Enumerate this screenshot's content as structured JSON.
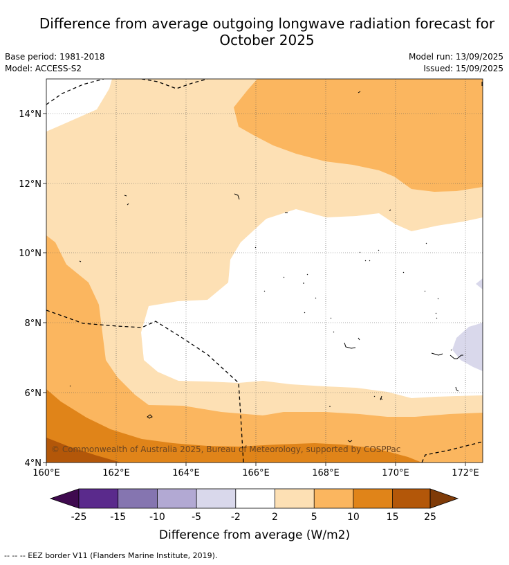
{
  "title": "Difference from average outgoing longwave radiation forecast for October 2025",
  "title_line1": "Difference from average outgoing longwave radiation forecast for",
  "title_line2": "October 2025",
  "base_period": "Base period: 1981-2018",
  "model": "Model: ACCESS-S2",
  "model_run": "Model run: 13/09/2025",
  "issued": "Issued: 15/09/2025",
  "copyright": "© Commonwealth of Australia 2025, Bureau of Meteorology, supported by COSPPac",
  "footer_note": "--  --  -- EEZ border V11 (Flanders Marine Institute, 2019).",
  "colorbar_label": "Difference from average (W/m2)",
  "lat_ticks": [
    "14°N",
    "12°N",
    "10°N",
    "8°N",
    "6°N",
    "4°N"
  ],
  "lon_ticks": [
    "160°E",
    "162°E",
    "164°E",
    "166°E",
    "168°E",
    "170°E",
    "172°E"
  ],
  "colorbar_ticks": [
    "-25",
    "-15",
    "-10",
    "-5",
    "-2",
    "2",
    "5",
    "10",
    "15",
    "25"
  ],
  "colors": {
    "c_lt_25": "#3f0a4f",
    "c_m25_m15": "#5a2a8c",
    "c_m15_m10": "#8575b0",
    "c_m10_m5": "#b2a9d3",
    "c_m5_m2": "#d9d8eb",
    "c_m2_2": "#ffffff",
    "c_2_5": "#fde0b4",
    "c_5_10": "#fbb65f",
    "c_10_15": "#e08419",
    "c_15_25": "#b35709",
    "c_gt_25": "#7f3b08"
  },
  "map_extent": {
    "lon_min": 160,
    "lon_max": 172.5,
    "lat_min": 4,
    "lat_max": 15.1
  }
}
